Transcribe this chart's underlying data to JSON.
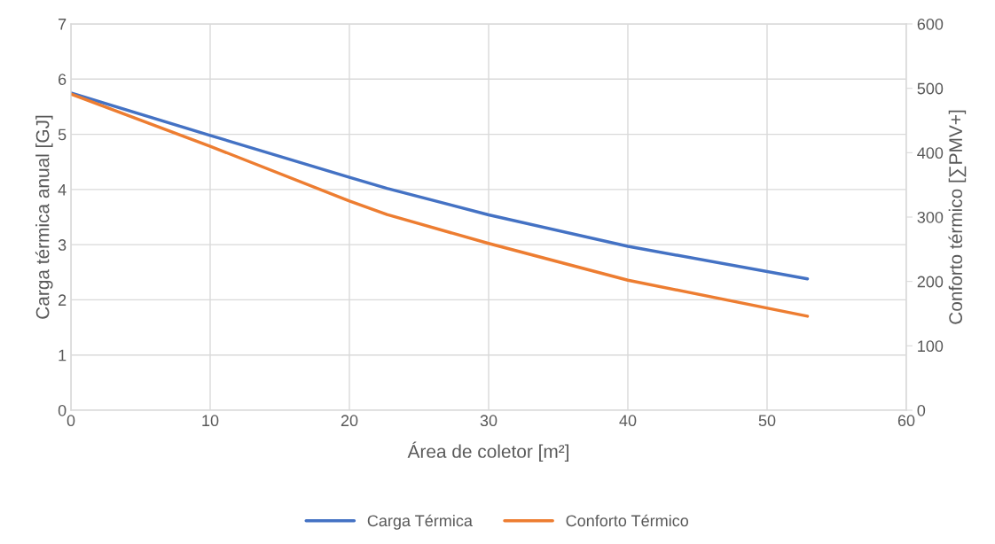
{
  "chart_data": {
    "type": "line",
    "xlabel": "Área de coletor [m²]",
    "ylabel": "Carga térmica anual [GJ]",
    "y2label": "Conforto térmico [∑PMV+]",
    "xlim": [
      0,
      60
    ],
    "xticks": [
      0,
      10,
      20,
      30,
      40,
      50,
      60
    ],
    "ylim": [
      0,
      7
    ],
    "yticks": [
      0,
      1,
      2,
      3,
      4,
      5,
      6,
      7
    ],
    "y2lim": [
      0,
      600
    ],
    "y2ticks": [
      0,
      100,
      200,
      300,
      400,
      500,
      600
    ],
    "grid": true,
    "legend": "bottom",
    "series": [
      {
        "name": "Carga Térmica",
        "color": "#4472c4",
        "x": [
          0,
          10,
          20,
          22.7,
          30,
          40,
          52.9
        ],
        "values": [
          5.75,
          4.98,
          4.22,
          4.02,
          3.54,
          2.97,
          2.38
        ]
      },
      {
        "name": "Conforto Térmico",
        "color": "#ed7d31",
        "axis": "y2",
        "x": [
          0,
          10,
          20,
          22.7,
          30,
          40,
          52.9
        ],
        "values": [
          491,
          410,
          325,
          304,
          259,
          202,
          146
        ]
      }
    ]
  }
}
